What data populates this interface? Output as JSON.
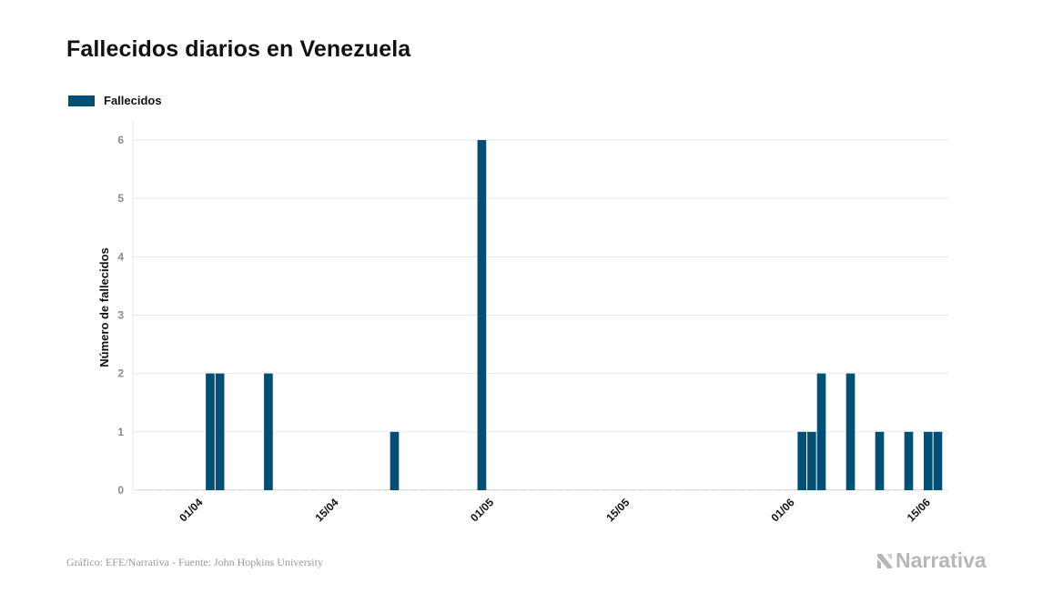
{
  "title": "Fallecidos diarios en Venezuela",
  "legend": {
    "label": "Fallecidos",
    "color": "#014f75"
  },
  "footer": "Gráfico: EFE/Narrativa - Fuente: John Hopkins University",
  "brand": "Narrativa",
  "chart_data": {
    "type": "bar",
    "title": "Fallecidos diarios en Venezuela",
    "ylabel": "Número de fallecidos",
    "xlabel": "",
    "ylim": [
      0,
      6
    ],
    "yticks": [
      0,
      1,
      2,
      3,
      4,
      5,
      6
    ],
    "xticks": [
      "01/04",
      "15/04",
      "01/05",
      "15/05",
      "01/06",
      "15/06"
    ],
    "grid": true,
    "legend_position": "top-left",
    "series": [
      {
        "name": "Fallecidos",
        "color": "#014f75",
        "points": [
          {
            "x": "2020-03-26",
            "y": 0
          },
          {
            "x": "2020-03-27",
            "y": 0
          },
          {
            "x": "2020-03-28",
            "y": 0
          },
          {
            "x": "2020-03-29",
            "y": 0
          },
          {
            "x": "2020-03-30",
            "y": 0
          },
          {
            "x": "2020-03-31",
            "y": 0
          },
          {
            "x": "2020-04-01",
            "y": 0
          },
          {
            "x": "2020-04-02",
            "y": 2
          },
          {
            "x": "2020-04-03",
            "y": 2
          },
          {
            "x": "2020-04-04",
            "y": 0
          },
          {
            "x": "2020-04-05",
            "y": 0
          },
          {
            "x": "2020-04-06",
            "y": 0
          },
          {
            "x": "2020-04-07",
            "y": 0
          },
          {
            "x": "2020-04-08",
            "y": 2
          },
          {
            "x": "2020-04-09",
            "y": 0
          },
          {
            "x": "2020-04-10",
            "y": 0
          },
          {
            "x": "2020-04-11",
            "y": 0
          },
          {
            "x": "2020-04-12",
            "y": 0
          },
          {
            "x": "2020-04-13",
            "y": 0
          },
          {
            "x": "2020-04-14",
            "y": 0
          },
          {
            "x": "2020-04-15",
            "y": 0
          },
          {
            "x": "2020-04-16",
            "y": 0
          },
          {
            "x": "2020-04-17",
            "y": 0
          },
          {
            "x": "2020-04-18",
            "y": 0
          },
          {
            "x": "2020-04-19",
            "y": 0
          },
          {
            "x": "2020-04-20",
            "y": 0
          },
          {
            "x": "2020-04-21",
            "y": 1
          },
          {
            "x": "2020-04-22",
            "y": 0
          },
          {
            "x": "2020-04-23",
            "y": 0
          },
          {
            "x": "2020-04-24",
            "y": 0
          },
          {
            "x": "2020-04-25",
            "y": 0
          },
          {
            "x": "2020-04-26",
            "y": 0
          },
          {
            "x": "2020-04-27",
            "y": 0
          },
          {
            "x": "2020-04-28",
            "y": 0
          },
          {
            "x": "2020-04-29",
            "y": 0
          },
          {
            "x": "2020-04-30",
            "y": 6
          },
          {
            "x": "2020-05-01",
            "y": 0
          },
          {
            "x": "2020-05-02",
            "y": 0
          },
          {
            "x": "2020-05-03",
            "y": 0
          },
          {
            "x": "2020-05-04",
            "y": 0
          },
          {
            "x": "2020-05-05",
            "y": 0
          },
          {
            "x": "2020-05-06",
            "y": 0
          },
          {
            "x": "2020-05-07",
            "y": 0
          },
          {
            "x": "2020-05-08",
            "y": 0
          },
          {
            "x": "2020-05-09",
            "y": 0
          },
          {
            "x": "2020-05-10",
            "y": 0
          },
          {
            "x": "2020-05-11",
            "y": 0
          },
          {
            "x": "2020-05-12",
            "y": 0
          },
          {
            "x": "2020-05-13",
            "y": 0
          },
          {
            "x": "2020-05-14",
            "y": 0
          },
          {
            "x": "2020-05-15",
            "y": 0
          },
          {
            "x": "2020-05-16",
            "y": 0
          },
          {
            "x": "2020-05-17",
            "y": 0
          },
          {
            "x": "2020-05-18",
            "y": 0
          },
          {
            "x": "2020-05-19",
            "y": 0
          },
          {
            "x": "2020-05-20",
            "y": 0
          },
          {
            "x": "2020-05-21",
            "y": 0
          },
          {
            "x": "2020-05-22",
            "y": 0
          },
          {
            "x": "2020-05-23",
            "y": 0
          },
          {
            "x": "2020-05-24",
            "y": 0
          },
          {
            "x": "2020-05-25",
            "y": 0
          },
          {
            "x": "2020-05-26",
            "y": 0
          },
          {
            "x": "2020-05-27",
            "y": 0
          },
          {
            "x": "2020-05-28",
            "y": 0
          },
          {
            "x": "2020-05-29",
            "y": 0
          },
          {
            "x": "2020-05-30",
            "y": 0
          },
          {
            "x": "2020-05-31",
            "y": 0
          },
          {
            "x": "2020-06-01",
            "y": 0
          },
          {
            "x": "2020-06-02",
            "y": 1
          },
          {
            "x": "2020-06-03",
            "y": 1
          },
          {
            "x": "2020-06-04",
            "y": 2
          },
          {
            "x": "2020-06-05",
            "y": 0
          },
          {
            "x": "2020-06-06",
            "y": 0
          },
          {
            "x": "2020-06-07",
            "y": 2
          },
          {
            "x": "2020-06-08",
            "y": 0
          },
          {
            "x": "2020-06-09",
            "y": 0
          },
          {
            "x": "2020-06-10",
            "y": 1
          },
          {
            "x": "2020-06-11",
            "y": 0
          },
          {
            "x": "2020-06-12",
            "y": 0
          },
          {
            "x": "2020-06-13",
            "y": 1
          },
          {
            "x": "2020-06-14",
            "y": 0
          },
          {
            "x": "2020-06-15",
            "y": 1
          },
          {
            "x": "2020-06-16",
            "y": 1
          }
        ]
      }
    ]
  }
}
